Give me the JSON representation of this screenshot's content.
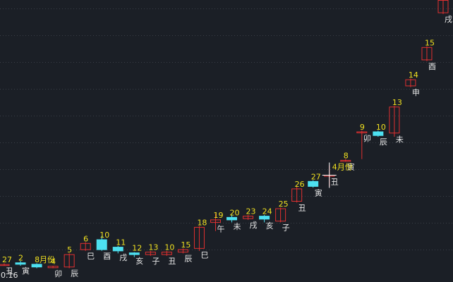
{
  "chart_data": {
    "type": "candlestick",
    "grid": true,
    "colors": {
      "background": "#1b1f26",
      "grid": "#3a3f47",
      "up": "#e03030",
      "down": "#4de0f0",
      "number_label": "#f0e020",
      "branch_label": "#e8e8e8",
      "crosshair": "#ffffff"
    },
    "price_label": "0.16",
    "cursor_label": "4月份",
    "candles": [
      {
        "num": "27",
        "branch": "丑",
        "open": 0.185,
        "close": 0.185,
        "high": 0.19,
        "low": 0.18
      },
      {
        "num": "2",
        "branch": "寅",
        "open": 0.192,
        "close": 0.186,
        "high": 0.2,
        "low": 0.18
      },
      {
        "num": "8月份",
        "branch": "",
        "open": 0.186,
        "close": 0.175,
        "high": 0.19,
        "low": 0.17
      },
      {
        "num": "4",
        "branch": "卯",
        "open": 0.172,
        "close": 0.178,
        "high": 0.18,
        "low": 0.17
      },
      {
        "num": "5",
        "branch": "辰",
        "open": 0.175,
        "close": 0.225,
        "high": 0.23,
        "low": 0.17
      },
      {
        "num": "6",
        "branch": "巳",
        "open": 0.245,
        "close": 0.27,
        "high": 0.275,
        "low": 0.24
      },
      {
        "num": "10",
        "branch": "酉",
        "open": 0.285,
        "close": 0.245,
        "high": 0.3,
        "low": 0.24
      },
      {
        "num": "11",
        "branch": "戌",
        "open": 0.255,
        "close": 0.24,
        "high": 0.26,
        "low": 0.23
      },
      {
        "num": "12",
        "branch": "亥",
        "open": 0.232,
        "close": 0.225,
        "high": 0.235,
        "low": 0.215
      },
      {
        "num": "13",
        "branch": "子",
        "open": 0.225,
        "close": 0.235,
        "high": 0.24,
        "low": 0.22
      },
      {
        "num": "10",
        "branch": "丑",
        "open": 0.225,
        "close": 0.235,
        "high": 0.24,
        "low": 0.22
      },
      {
        "num": "15",
        "branch": "辰",
        "open": 0.235,
        "close": 0.245,
        "high": 0.25,
        "low": 0.23
      },
      {
        "num": "18",
        "branch": "巳",
        "open": 0.25,
        "close": 0.335,
        "high": 0.34,
        "low": 0.24
      },
      {
        "num": "19",
        "branch": "午",
        "open": 0.355,
        "close": 0.365,
        "high": 0.39,
        "low": 0.32
      },
      {
        "num": "20",
        "branch": "未",
        "open": 0.375,
        "close": 0.365,
        "high": 0.385,
        "low": 0.355
      },
      {
        "num": "23",
        "branch": "戌",
        "open": 0.37,
        "close": 0.38,
        "high": 0.385,
        "low": 0.365
      },
      {
        "num": "24",
        "branch": "亥",
        "open": 0.38,
        "close": 0.368,
        "high": 0.385,
        "low": 0.355
      },
      {
        "num": "25",
        "branch": "子",
        "open": 0.36,
        "close": 0.41,
        "high": 0.415,
        "low": 0.355
      },
      {
        "num": "26",
        "branch": "丑",
        "open": 0.44,
        "close": 0.49,
        "high": 0.5,
        "low": 0.435
      },
      {
        "num": "27",
        "branch": "寅",
        "open": 0.52,
        "close": 0.5,
        "high": 0.525,
        "low": 0.495
      },
      {
        "num": "",
        "branch": "丑",
        "open": 0.545,
        "close": 0.545,
        "high": 0.585,
        "low": 0.5
      },
      {
        "num": "8",
        "branch": "寅",
        "open": 0.605,
        "close": 0.605,
        "high": 0.61,
        "low": 0.6
      },
      {
        "num": "9",
        "branch": "卯",
        "open": 0.72,
        "close": 0.72,
        "high": 0.725,
        "low": 0.61
      },
      {
        "num": "10",
        "branch": "辰",
        "open": 0.72,
        "close": 0.705,
        "high": 0.725,
        "low": 0.7
      },
      {
        "num": "13",
        "branch": "未",
        "open": 0.715,
        "close": 0.82,
        "high": 0.825,
        "low": 0.7
      },
      {
        "num": "14",
        "branch": "申",
        "open": 0.905,
        "close": 0.93,
        "high": 0.935,
        "low": 0.9
      },
      {
        "num": "15",
        "branch": "酉",
        "open": 1.01,
        "close": 1.06,
        "high": 1.065,
        "low": 1.005
      },
      {
        "num": "",
        "branch": "戌",
        "open": 1.2,
        "close": 1.25,
        "high": 1.255,
        "low": 1.195
      }
    ],
    "ylim": [
      0.16,
      1.24
    ]
  }
}
